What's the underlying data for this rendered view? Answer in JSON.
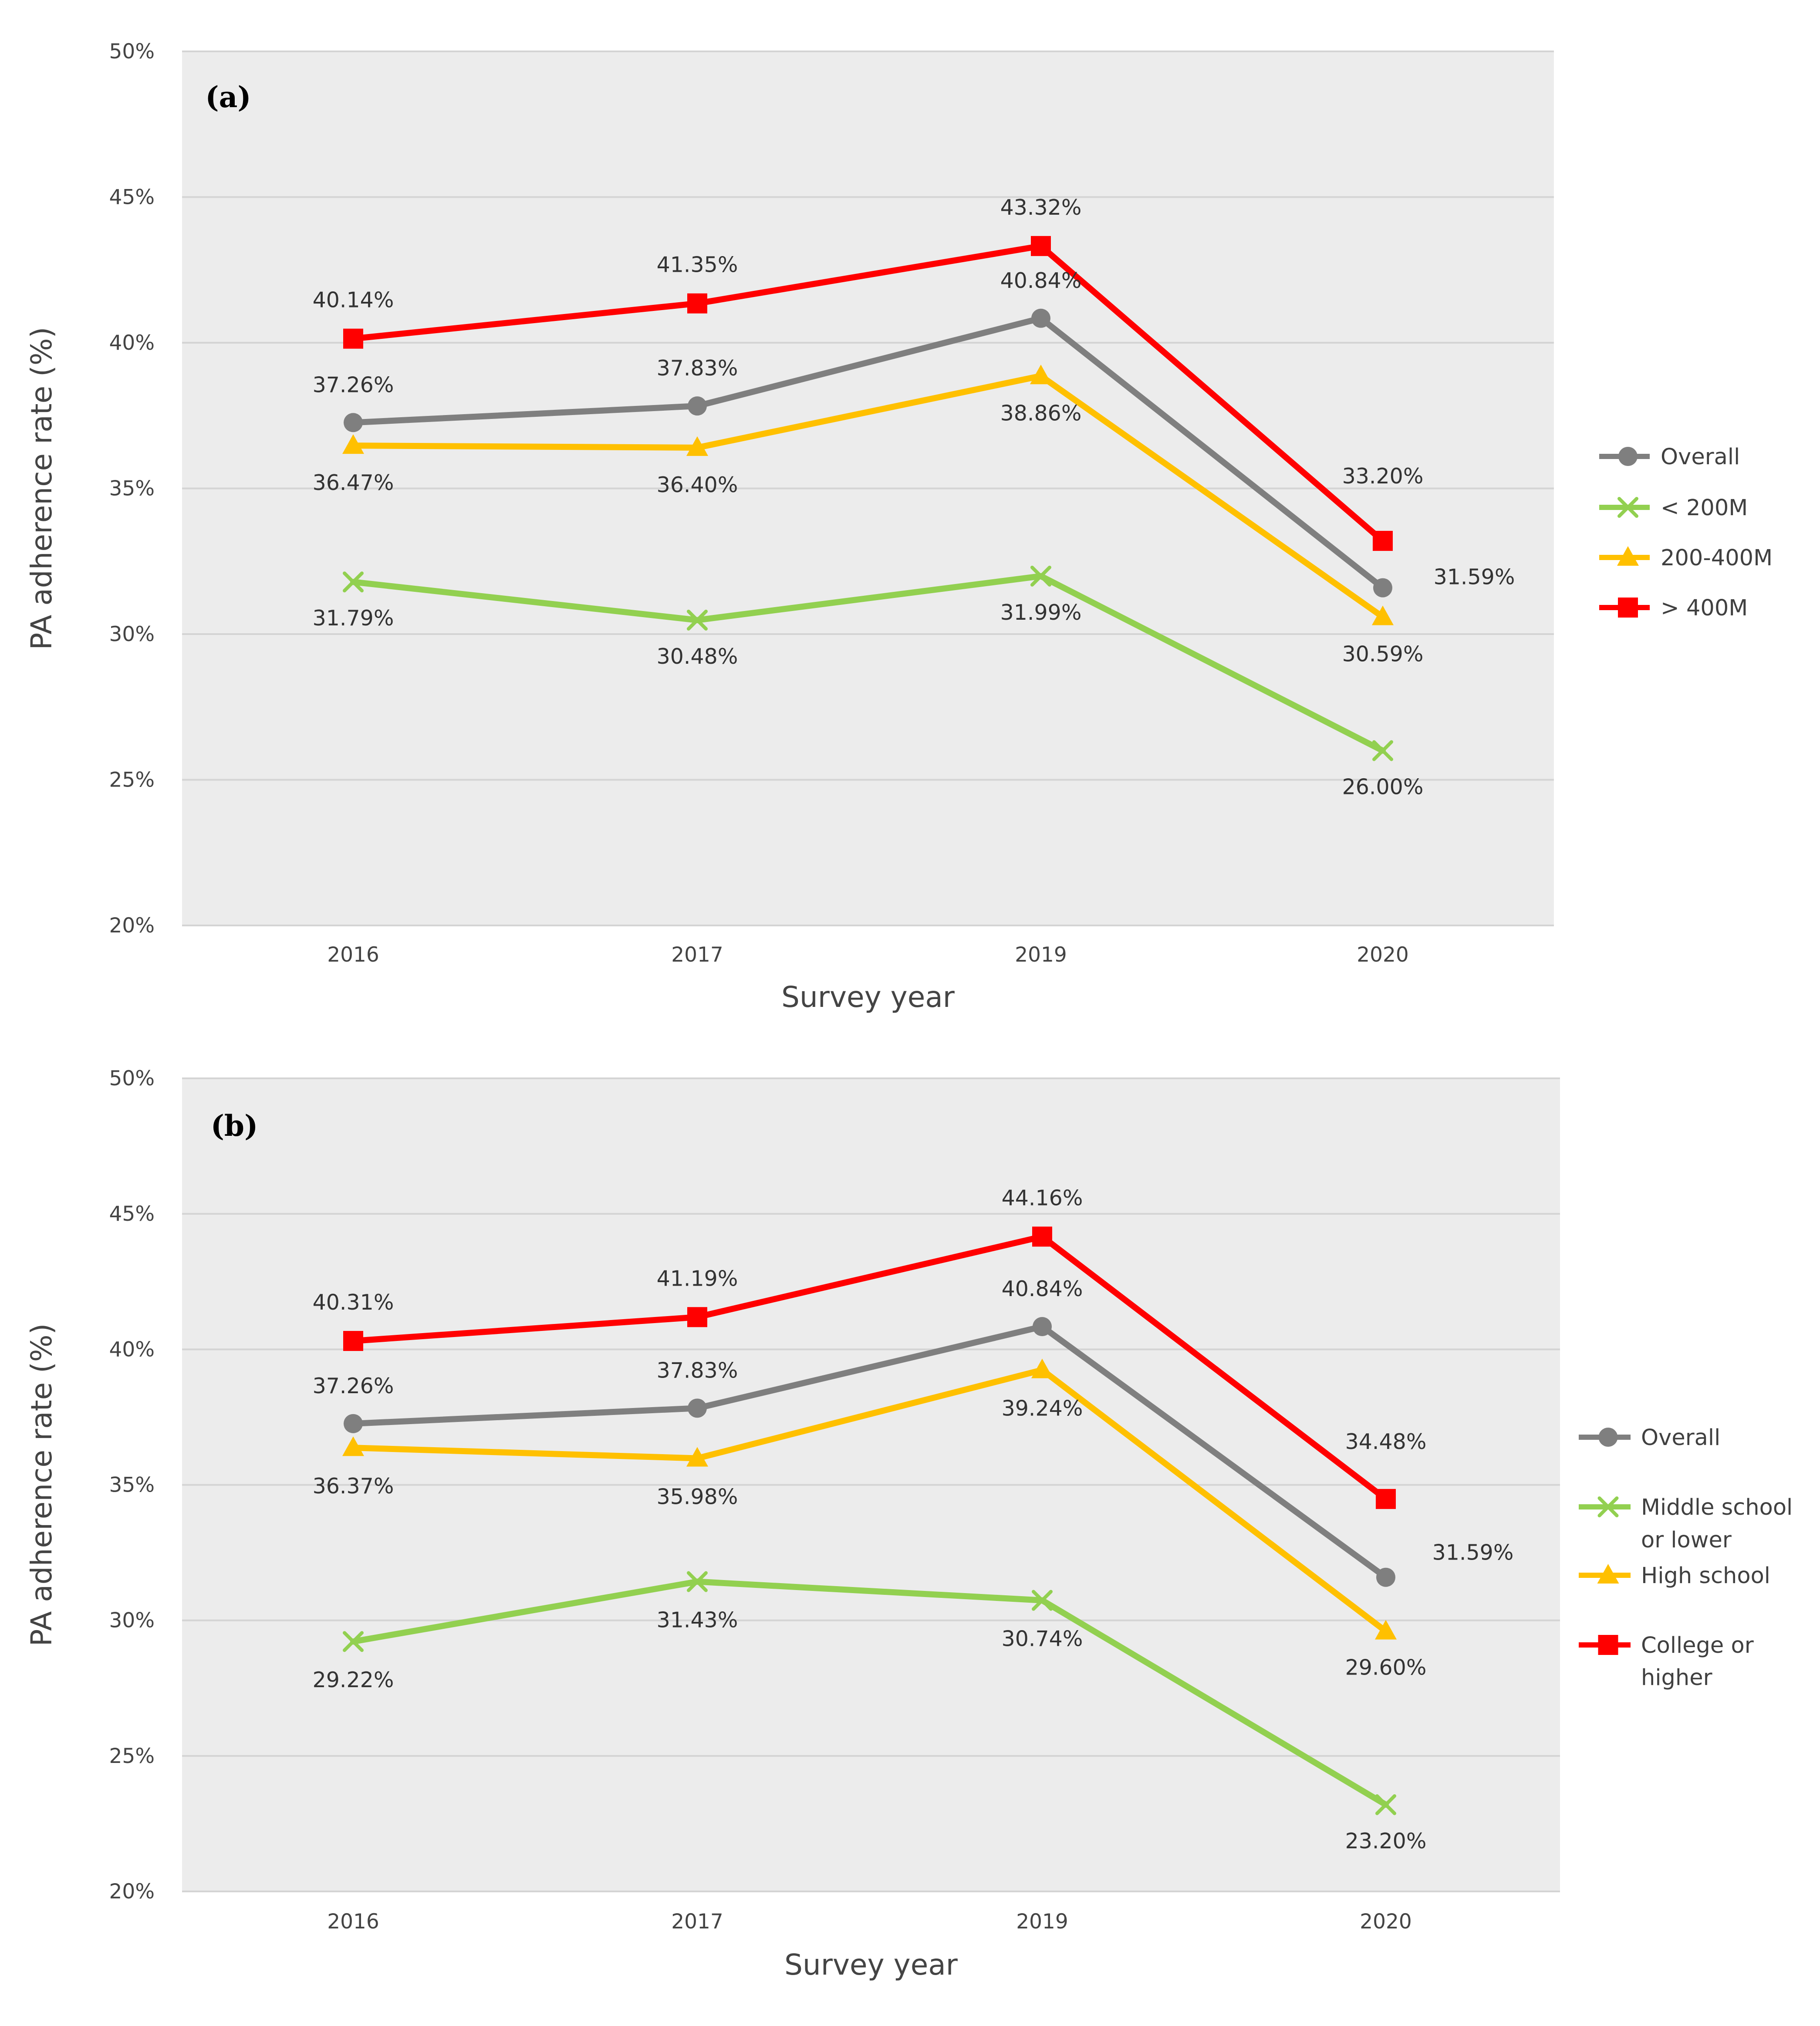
{
  "colors": {
    "overall": "#7f7f7f",
    "low": "#92d050",
    "mid": "#ffc000",
    "high": "#ff0000",
    "plot_bg": "#ececec",
    "grid": "#d4d4d4"
  },
  "chart_data": [
    {
      "type": "line",
      "panel_label": "(a)",
      "xlabel": "Survey year",
      "ylabel": "PA adherence rate (%)",
      "categories": [
        "2016",
        "2017",
        "2019",
        "2020"
      ],
      "ylim": [
        20,
        50
      ],
      "yticks": [
        "20%",
        "25%",
        "30%",
        "35%",
        "40%",
        "45%",
        "50%"
      ],
      "grid": true,
      "legend_position": "right",
      "series": [
        {
          "name": "Overall",
          "key": "overall",
          "marker": "circle",
          "values": [
            37.26,
            37.83,
            40.84,
            31.59
          ],
          "labels": [
            "37.26%",
            "37.83%",
            "40.84%",
            "31.59%"
          ]
        },
        {
          "name": "< 200M",
          "key": "low",
          "marker": "x",
          "values": [
            31.79,
            30.48,
            31.99,
            26.0
          ],
          "labels": [
            "31.79%",
            "30.48%",
            "31.99%",
            "26.00%"
          ]
        },
        {
          "name": "200-400M",
          "key": "mid",
          "marker": "triangle",
          "values": [
            36.47,
            36.4,
            38.86,
            30.59
          ],
          "labels": [
            "36.47%",
            "36.40%",
            "38.86%",
            "30.59%"
          ]
        },
        {
          "name": "> 400M",
          "key": "high",
          "marker": "square",
          "values": [
            40.14,
            41.35,
            43.32,
            33.2
          ],
          "labels": [
            "40.14%",
            "41.35%",
            "43.32%",
            "33.20%"
          ]
        }
      ]
    },
    {
      "type": "line",
      "panel_label": "(b)",
      "xlabel": "Survey year",
      "ylabel": "PA adherence rate (%)",
      "categories": [
        "2016",
        "2017",
        "2019",
        "2020"
      ],
      "ylim": [
        20,
        50
      ],
      "yticks": [
        "20%",
        "25%",
        "30%",
        "35%",
        "40%",
        "45%",
        "50%"
      ],
      "grid": true,
      "legend_position": "right",
      "series": [
        {
          "name": "Overall",
          "key": "overall",
          "marker": "circle",
          "values": [
            37.26,
            37.83,
            40.84,
            31.59
          ],
          "labels": [
            "37.26%",
            "37.83%",
            "40.84%",
            "31.59%"
          ]
        },
        {
          "name": "Middle school or lower",
          "key": "low",
          "marker": "x",
          "legend_lines": [
            "Middle school",
            "or lower"
          ],
          "values": [
            29.22,
            31.43,
            30.74,
            23.2
          ],
          "labels": [
            "29.22%",
            "31.43%",
            "30.74%",
            "23.20%"
          ]
        },
        {
          "name": "High school",
          "key": "mid",
          "marker": "triangle",
          "values": [
            36.37,
            35.98,
            39.24,
            29.6
          ],
          "labels": [
            "36.37%",
            "35.98%",
            "39.24%",
            "29.60%"
          ]
        },
        {
          "name": "College or higher",
          "key": "high",
          "marker": "square",
          "legend_lines": [
            "College or",
            "higher"
          ],
          "values": [
            40.31,
            41.19,
            44.16,
            34.48
          ],
          "labels": [
            "40.31%",
            "41.19%",
            "44.16%",
            "34.48%"
          ]
        }
      ]
    }
  ]
}
